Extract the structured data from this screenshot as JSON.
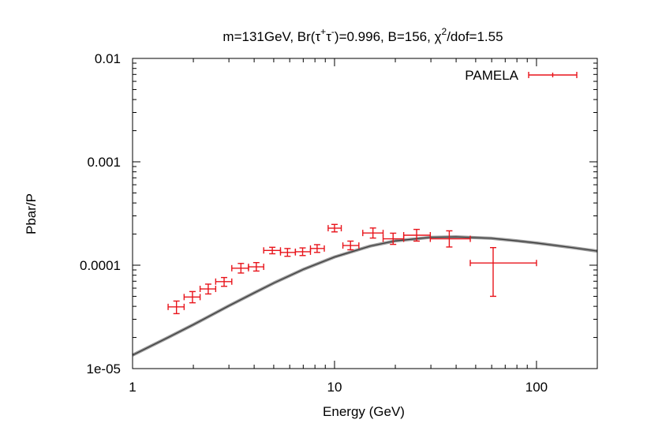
{
  "chart_data": {
    "type": "scatter",
    "title": {
      "prefix": "m=131GeV, Br(",
      "tau": "τ",
      "plus": "+",
      "minus": "-",
      "middle": ")=0.996, B=156, ",
      "chi": "χ",
      "sq": "2",
      "suffix": "/dof=1.55"
    },
    "xlabel": "Energy (GeV)",
    "ylabel": "Pbar/P",
    "x_scale": "log",
    "y_scale": "log",
    "xlim": [
      1,
      200
    ],
    "ylim": [
      1e-05,
      0.01
    ],
    "x_ticks": [
      {
        "value": 1,
        "label": "1"
      },
      {
        "value": 10,
        "label": "10"
      },
      {
        "value": 100,
        "label": "100"
      }
    ],
    "y_ticks": [
      {
        "value": 1e-05,
        "label": "1e-05"
      },
      {
        "value": 0.0001,
        "label": "0.0001"
      },
      {
        "value": 0.001,
        "label": "0.001"
      },
      {
        "value": 0.01,
        "label": "0.01"
      }
    ],
    "grid": false,
    "legend": {
      "position": "top-right",
      "entries": [
        "PAMELA"
      ]
    },
    "series": [
      {
        "name": "PAMELA",
        "kind": "errorbars",
        "color": "#e8141b",
        "points": [
          {
            "x": 1.65,
            "y": 3.95e-05,
            "xlo": 1.5,
            "xhi": 1.8,
            "ylo": 3.4e-05,
            "yhi": 4.5e-05
          },
          {
            "x": 1.98,
            "y": 4.92e-05,
            "xlo": 1.8,
            "xhi": 2.16,
            "ylo": 4.33e-05,
            "yhi": 5.56e-05
          },
          {
            "x": 2.37,
            "y": 5.9e-05,
            "xlo": 2.16,
            "xhi": 2.58,
            "ylo": 5.27e-05,
            "yhi": 6.56e-05
          },
          {
            "x": 2.84,
            "y": 6.94e-05,
            "xlo": 2.58,
            "xhi": 3.1,
            "ylo": 6.25e-05,
            "yhi": 7.6e-05
          },
          {
            "x": 3.44,
            "y": 9.35e-05,
            "xlo": 3.1,
            "xhi": 3.75,
            "ylo": 8.4e-05,
            "yhi": 0.000104
          },
          {
            "x": 4.1,
            "y": 9.65e-05,
            "xlo": 3.75,
            "xhi": 4.46,
            "ylo": 8.78e-05,
            "yhi": 0.000106
          },
          {
            "x": 4.92,
            "y": 0.000139,
            "xlo": 4.46,
            "xhi": 5.4,
            "ylo": 0.000129,
            "yhi": 0.000149
          },
          {
            "x": 5.85,
            "y": 0.000133,
            "xlo": 5.4,
            "xhi": 6.4,
            "ylo": 0.000122,
            "yhi": 0.000145
          },
          {
            "x": 6.95,
            "y": 0.000135,
            "xlo": 6.4,
            "xhi": 7.6,
            "ylo": 0.000124,
            "yhi": 0.000147
          },
          {
            "x": 8.2,
            "y": 0.000145,
            "xlo": 7.6,
            "xhi": 8.9,
            "ylo": 0.000133,
            "yhi": 0.000158
          },
          {
            "x": 10.0,
            "y": 0.000228,
            "xlo": 9.3,
            "xhi": 10.8,
            "ylo": 0.00021,
            "yhi": 0.000248
          },
          {
            "x": 12.0,
            "y": 0.000155,
            "xlo": 11.0,
            "xhi": 13.2,
            "ylo": 0.000141,
            "yhi": 0.000171
          },
          {
            "x": 15.5,
            "y": 0.000205,
            "xlo": 13.8,
            "xhi": 17.4,
            "ylo": 0.000183,
            "yhi": 0.000229
          },
          {
            "x": 19.5,
            "y": 0.00018,
            "xlo": 17.4,
            "xhi": 22.0,
            "ylo": 0.000159,
            "yhi": 0.000204
          },
          {
            "x": 25.5,
            "y": 0.000195,
            "xlo": 22.0,
            "xhi": 29.8,
            "ylo": 0.000171,
            "yhi": 0.000222
          },
          {
            "x": 37.0,
            "y": 0.00018,
            "xlo": 29.8,
            "xhi": 47.0,
            "ylo": 0.00015,
            "yhi": 0.000215
          },
          {
            "x": 61.0,
            "y": 0.000105,
            "xlo": 47.0,
            "xhi": 100.0,
            "ylo": 5e-05,
            "yhi": 0.000148
          }
        ]
      },
      {
        "kind": "curve",
        "color": "#808080",
        "points": [
          {
            "x": 1,
            "y": 1.35e-05
          },
          {
            "x": 1.5,
            "y": 2e-05
          },
          {
            "x": 2,
            "y": 2.66e-05
          },
          {
            "x": 3,
            "y": 4.05e-05
          },
          {
            "x": 4,
            "y": 5.4e-05
          },
          {
            "x": 5,
            "y": 6.72e-05
          },
          {
            "x": 7,
            "y": 9.1e-05
          },
          {
            "x": 10,
            "y": 0.00012
          },
          {
            "x": 15,
            "y": 0.000153
          },
          {
            "x": 20,
            "y": 0.000172
          },
          {
            "x": 30,
            "y": 0.000186
          },
          {
            "x": 40,
            "y": 0.000188
          },
          {
            "x": 60,
            "y": 0.000182
          },
          {
            "x": 80,
            "y": 0.000172
          },
          {
            "x": 100,
            "y": 0.000164
          },
          {
            "x": 150,
            "y": 0.000148
          },
          {
            "x": 200,
            "y": 0.000137
          }
        ]
      }
    ]
  }
}
